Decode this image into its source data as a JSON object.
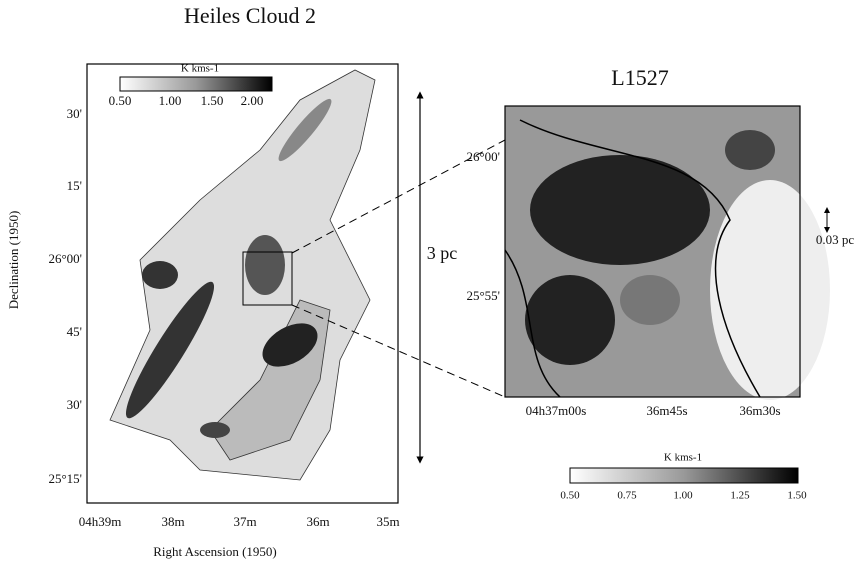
{
  "left_panel": {
    "title": "Heiles Cloud 2",
    "colorbar": {
      "unit": "K kms-1",
      "ticks": [
        "0.50",
        "1.00",
        "1.50",
        "2.00"
      ]
    },
    "y_axis": {
      "label": "Declination (1950)",
      "ticks": [
        "30'",
        "15'",
        "26°00'",
        "45'",
        "30'",
        "25°15'"
      ]
    },
    "x_axis": {
      "label": "Right Ascension (1950)",
      "ticks": [
        "04h39m",
        "38m",
        "37m",
        "36m",
        "35m"
      ]
    }
  },
  "scale_bar": "3 pc",
  "right_panel": {
    "title": "L1527",
    "y_ticks": [
      "26°00'",
      "25°55'"
    ],
    "x_ticks": [
      "04h37m00s",
      "36m45s",
      "36m30s"
    ],
    "scale_bar": "0.03 pc",
    "colorbar": {
      "unit": "K kms-1",
      "ticks": [
        "0.50",
        "0.75",
        "1.00",
        "1.25",
        "1.50"
      ]
    }
  }
}
